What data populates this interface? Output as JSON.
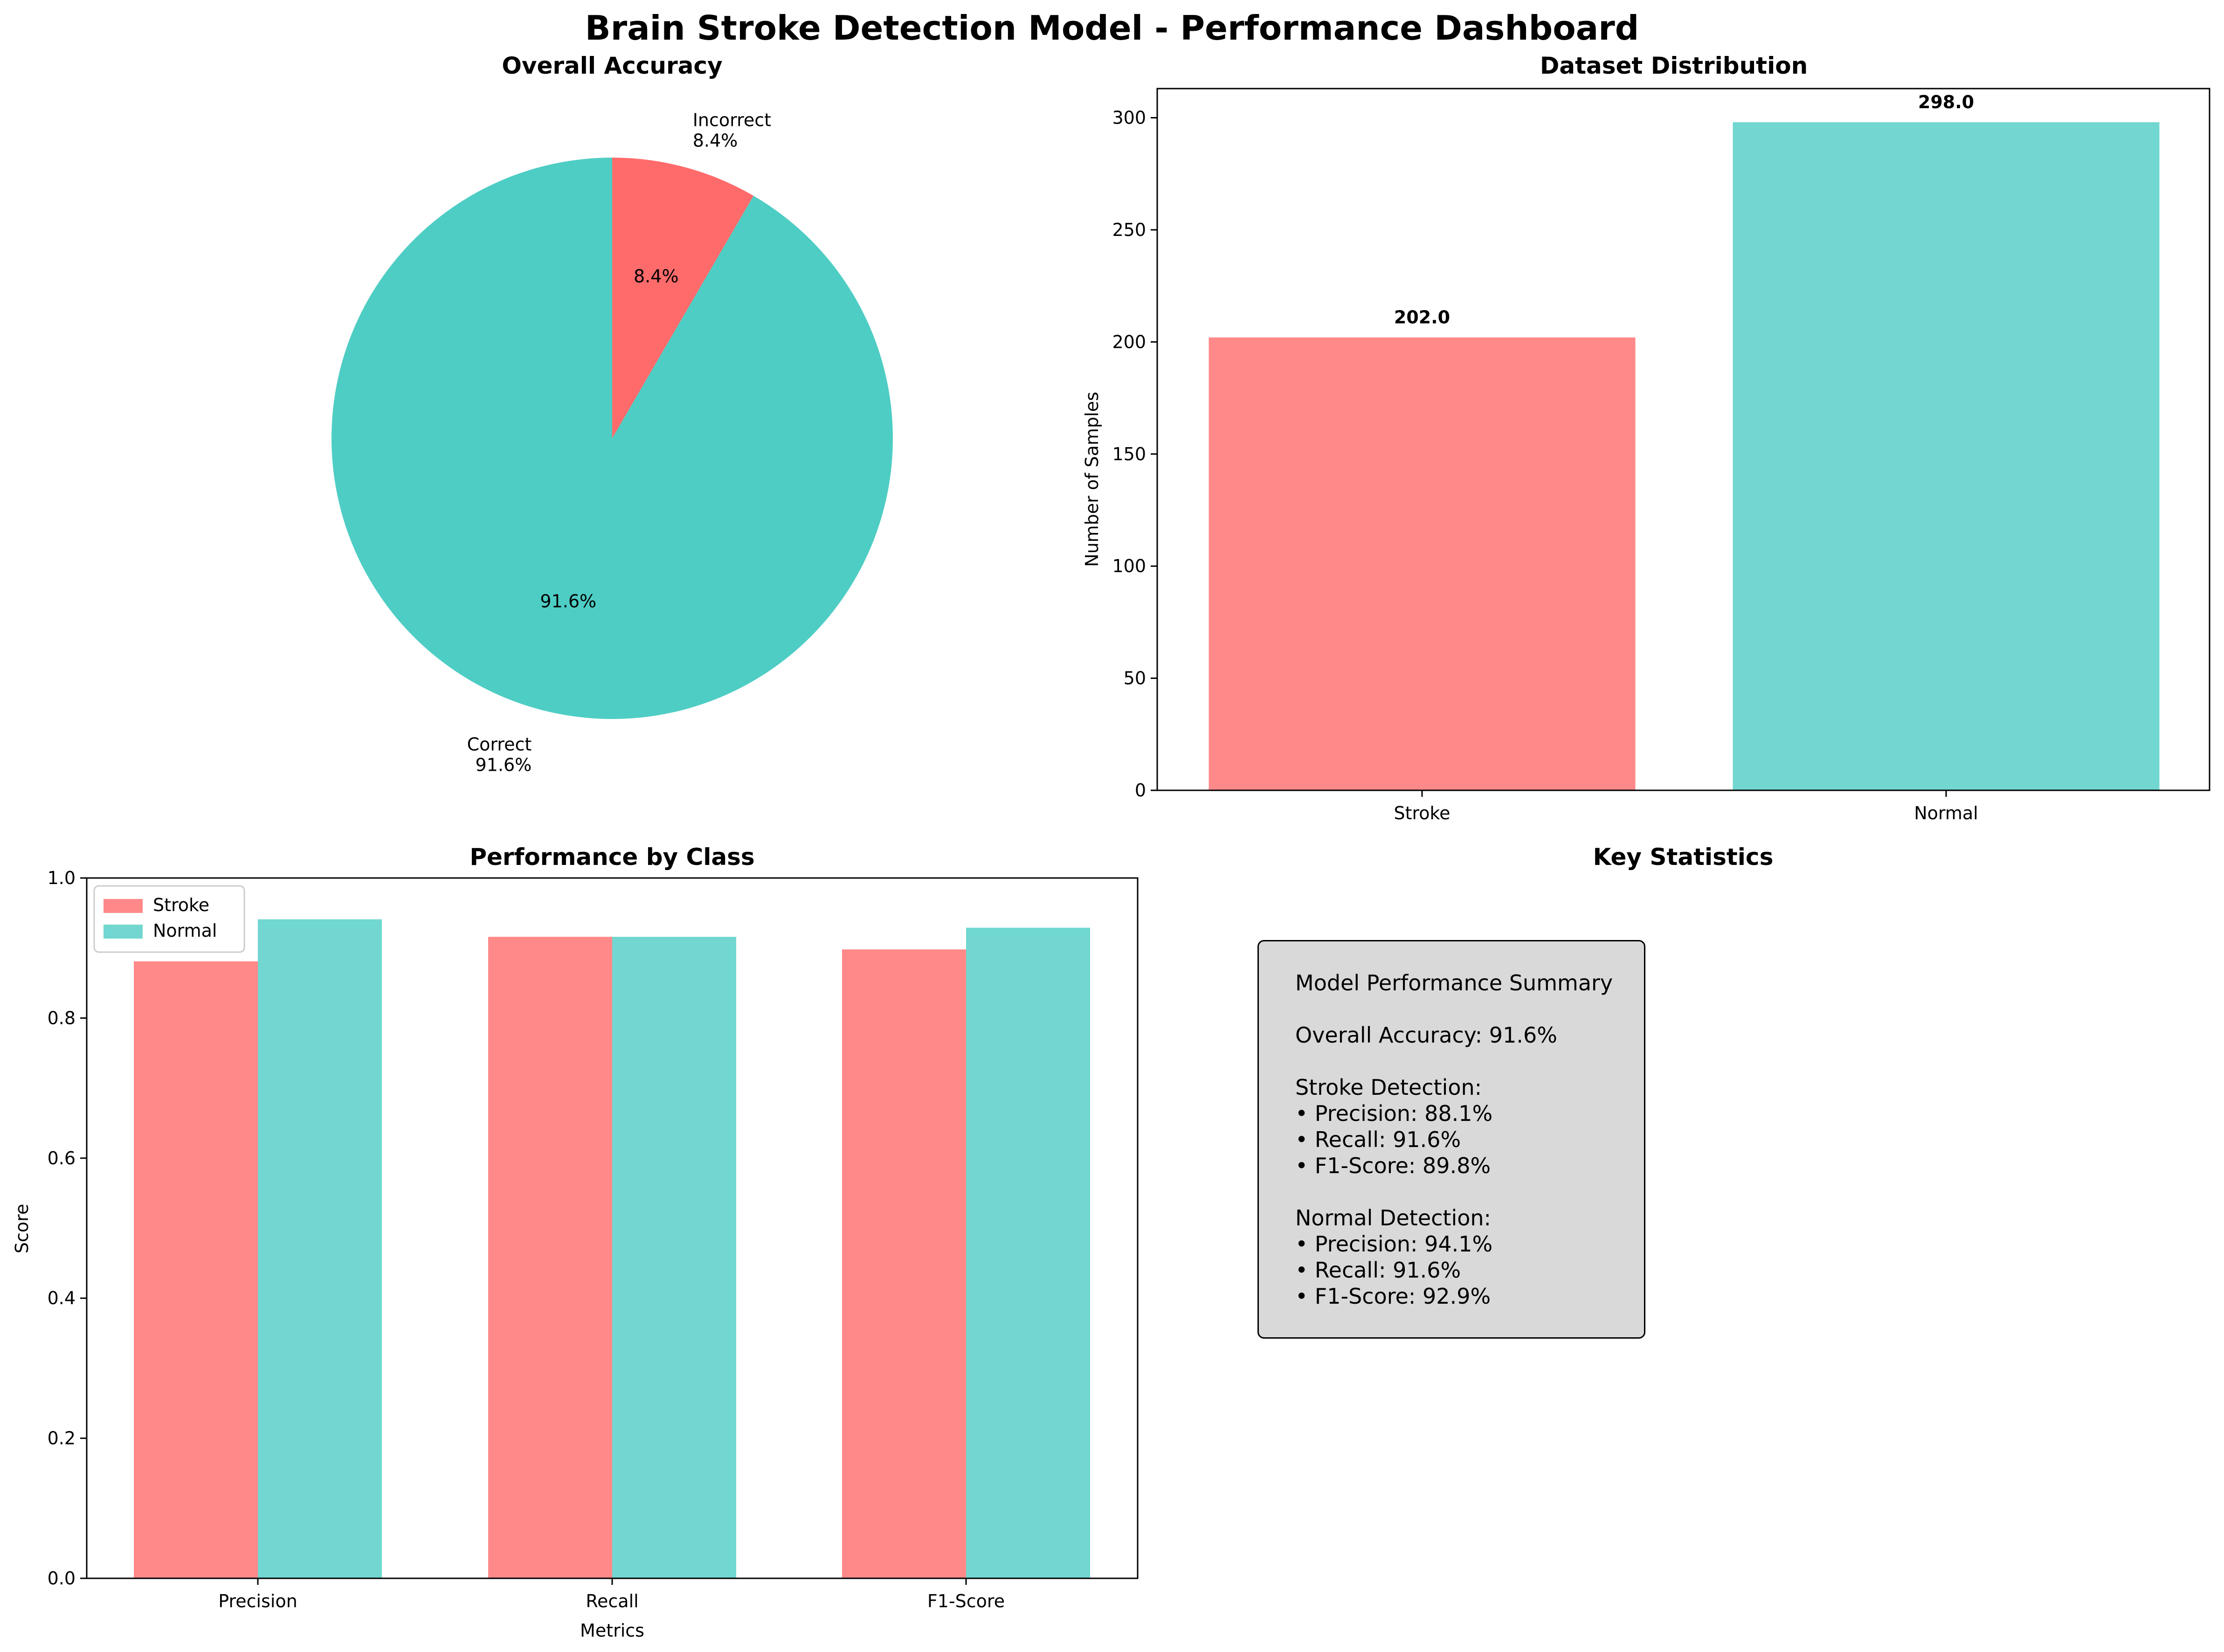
{
  "title": "Brain Stroke Detection Model - Performance Dashboard",
  "colors": {
    "stroke": "#ff6b6b",
    "normal": "#4ecdc4"
  },
  "chart_data": [
    {
      "type": "pie",
      "title": "Overall Accuracy",
      "labels": [
        "Correct",
        "Incorrect"
      ],
      "values": [
        91.6,
        8.4
      ],
      "pct_labels": [
        "91.6%",
        "8.4%"
      ],
      "label_text": [
        "Correct\n91.6%",
        "Incorrect\n8.4%"
      ],
      "colors": [
        "#4ecdc4",
        "#ff6b6b"
      ]
    },
    {
      "type": "bar",
      "title": "Dataset Distribution",
      "categories": [
        "Stroke",
        "Normal"
      ],
      "values": [
        202,
        298
      ],
      "value_labels": [
        "202.0",
        "298.0"
      ],
      "ylabel": "Number of Samples",
      "xlabel": "",
      "ylim": [
        0,
        313
      ],
      "yticks": [
        0,
        50,
        100,
        150,
        200,
        250,
        300
      ],
      "colors": [
        "#ff6b6b",
        "#4ecdc4"
      ]
    },
    {
      "type": "bar",
      "title": "Performance by Class",
      "categories": [
        "Precision",
        "Recall",
        "F1-Score"
      ],
      "series": [
        {
          "name": "Stroke",
          "values": [
            0.881,
            0.916,
            0.898
          ],
          "color": "#ff6b6b"
        },
        {
          "name": "Normal",
          "values": [
            0.941,
            0.916,
            0.929
          ],
          "color": "#4ecdc4"
        }
      ],
      "xlabel": "Metrics",
      "ylabel": "Score",
      "ylim": [
        0,
        1.0
      ],
      "yticks": [
        "0.0",
        "0.2",
        "0.4",
        "0.6",
        "0.8",
        "1.0"
      ],
      "legend": "top-left"
    }
  ],
  "key_statistics": {
    "title": "Key Statistics",
    "lines": [
      "Model Performance Summary",
      "",
      "Overall Accuracy: 91.6%",
      "",
      "Stroke Detection:",
      "• Precision: 88.1%",
      "• Recall: 91.6%",
      "• F1-Score: 89.8%",
      "",
      "Normal Detection:",
      "• Precision: 94.1%",
      "• Recall: 91.6%",
      "• F1-Score: 92.9%"
    ]
  }
}
